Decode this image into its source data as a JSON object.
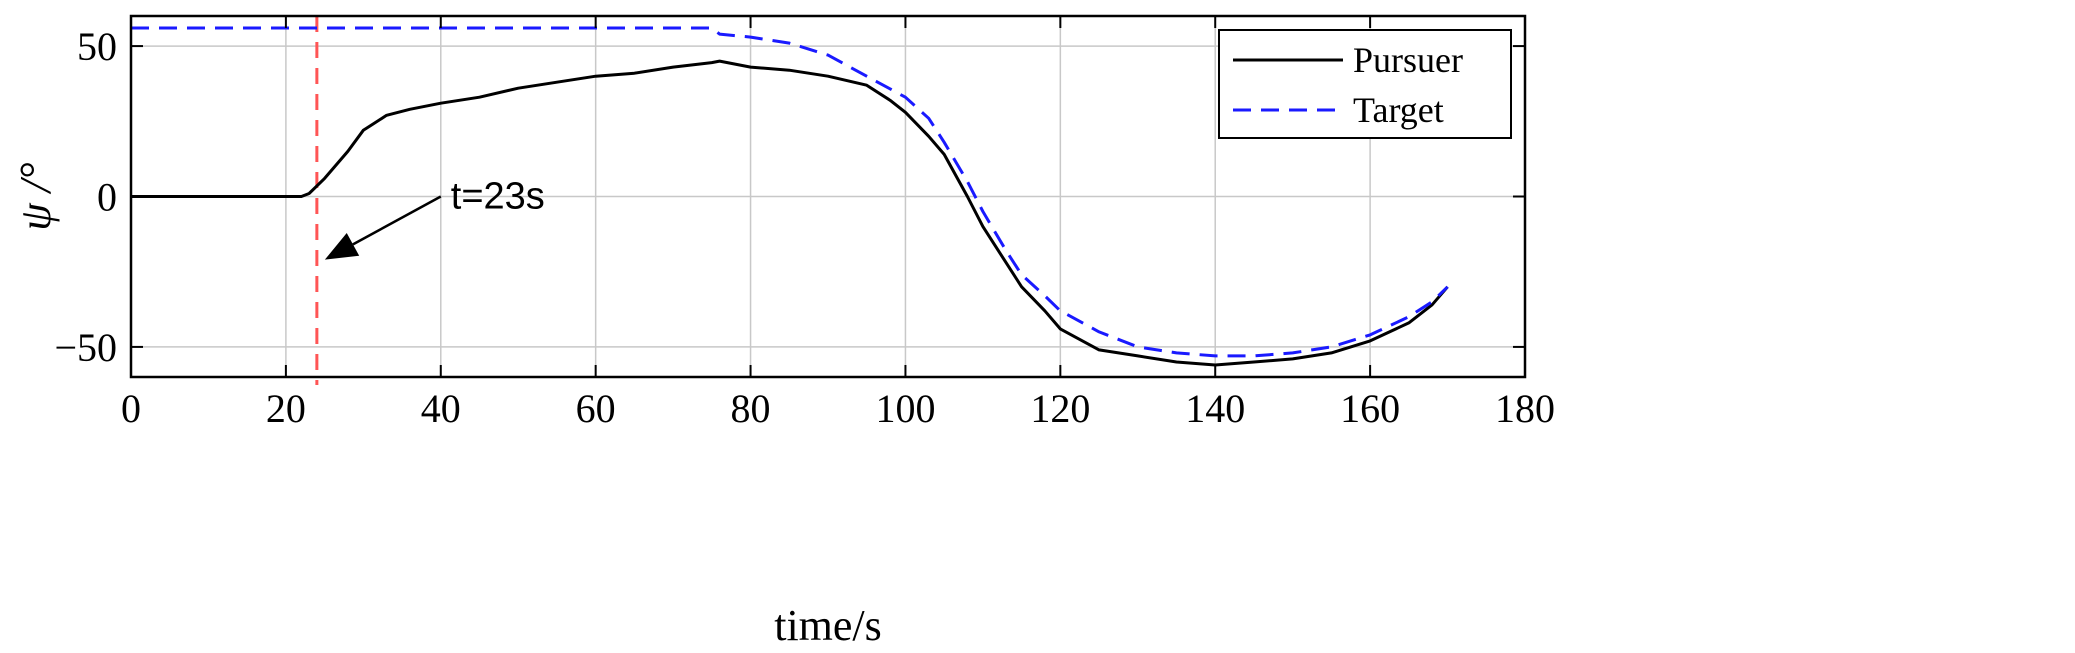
{
  "chart_data": {
    "type": "line",
    "xlabel": "time/s",
    "ylabel": "ψ /°",
    "xlim": [
      0,
      180
    ],
    "ylim": [
      -60,
      60
    ],
    "xticks": [
      0,
      20,
      40,
      60,
      80,
      100,
      120,
      140,
      160,
      180
    ],
    "yticks": [
      -50,
      0,
      50
    ],
    "ytick_labels": [
      "−50",
      "0",
      "50"
    ],
    "grid": true,
    "legend_position": "top-right",
    "series": [
      {
        "name": "Pursuer",
        "color": "#000000",
        "style": "solid",
        "x": [
          0,
          10,
          20,
          22,
          23,
          25,
          28,
          30,
          33,
          36,
          40,
          45,
          50,
          55,
          60,
          65,
          70,
          75,
          76,
          80,
          85,
          90,
          95,
          98,
          100,
          103,
          105,
          108,
          110,
          113,
          115,
          118,
          120,
          125,
          130,
          135,
          140,
          145,
          150,
          155,
          160,
          165,
          168,
          170
        ],
        "y": [
          0,
          0,
          0,
          0,
          1,
          6,
          15,
          22,
          27,
          29,
          31,
          33,
          36,
          38,
          40,
          41,
          43,
          44.5,
          45,
          43,
          42,
          40,
          37,
          32,
          28,
          20,
          14,
          0,
          -10,
          -22,
          -30,
          -38,
          -44,
          -51,
          -53,
          -55,
          -56,
          -55,
          -54,
          -52,
          -48,
          -42,
          -36,
          -30
        ]
      },
      {
        "name": "Target",
        "color": "#1a1aff",
        "style": "dashed",
        "x": [
          0,
          20,
          40,
          60,
          70,
          75,
          76,
          80,
          85,
          90,
          95,
          100,
          103,
          105,
          108,
          110,
          113,
          115,
          118,
          120,
          125,
          130,
          135,
          140,
          145,
          150,
          155,
          160,
          165,
          168,
          170
        ],
        "y": [
          56,
          56,
          56,
          56,
          56,
          56,
          54,
          53,
          51,
          47,
          40,
          33,
          26,
          18,
          5,
          -5,
          -18,
          -26,
          -33,
          -38,
          -45,
          -50,
          -52,
          -53,
          -53,
          -52,
          -50,
          -46,
          -40,
          -35,
          -30
        ]
      }
    ],
    "vertical_line": {
      "x": 24,
      "color": "#ff5555",
      "style": "dashed"
    },
    "annotation": {
      "text": "t=23s",
      "x": 40,
      "y": 0,
      "arrow_to_x": 24,
      "arrow_to_y": -21
    }
  }
}
